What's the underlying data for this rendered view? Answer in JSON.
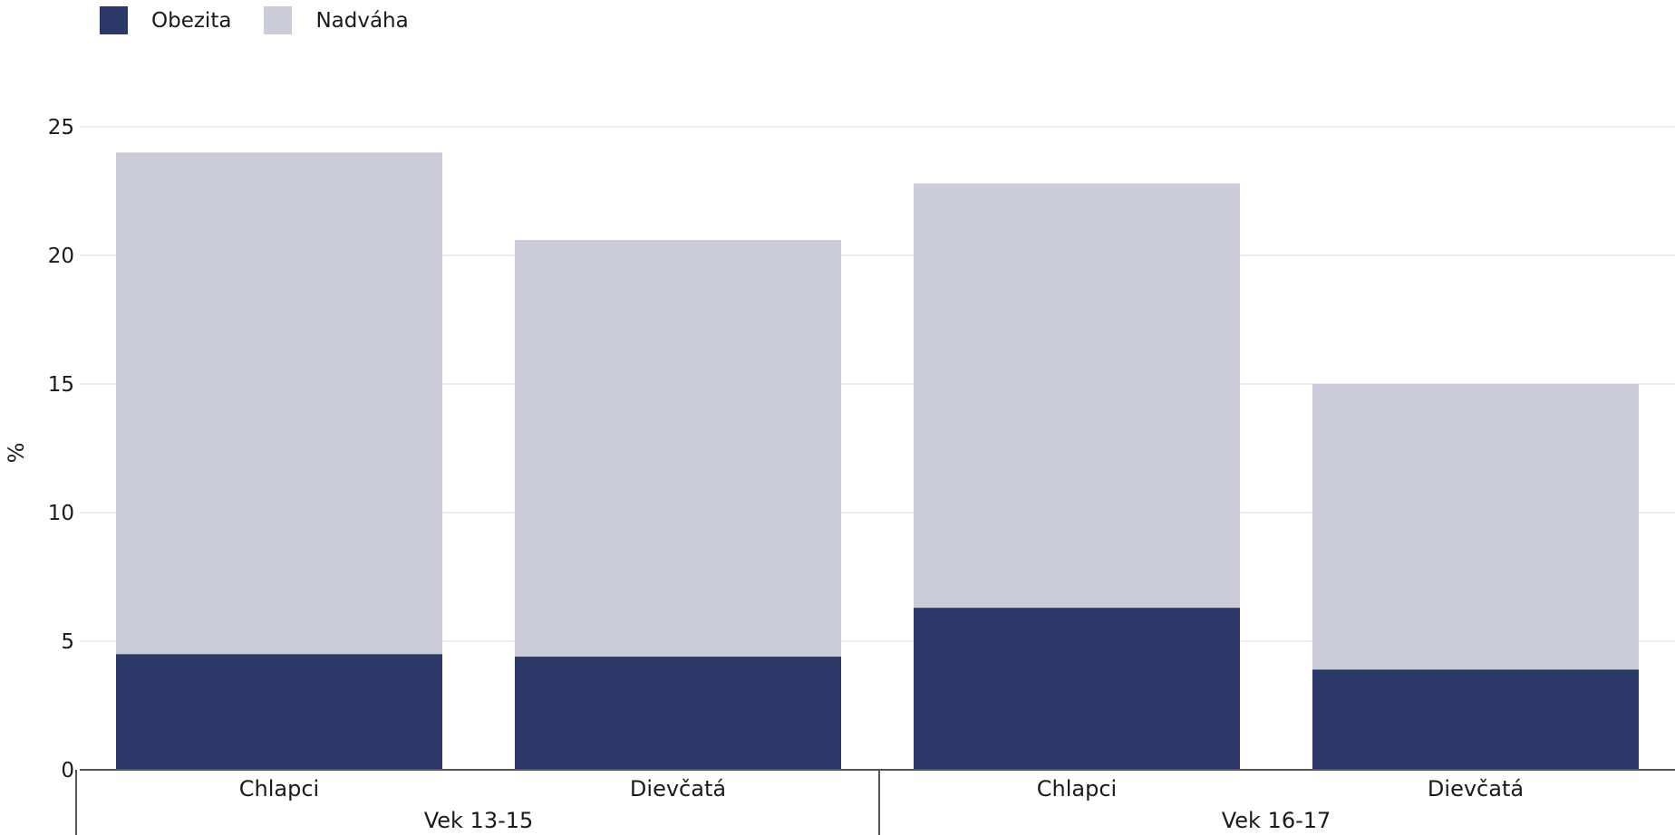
{
  "legend": [
    {
      "label": "Obezita",
      "color": "#2b3766"
    },
    {
      "label": "Nadváha",
      "color": "#cacdd9"
    }
  ],
  "chart_data": {
    "type": "bar",
    "stacked": true,
    "ylabel": "%",
    "ylim": [
      0,
      25
    ],
    "yticks": [
      0,
      5,
      10,
      15,
      20,
      25
    ],
    "grid": true,
    "legend_position": "top-left",
    "categories": [
      "Chlapci",
      "Dievčatá",
      "Chlapci",
      "Dievčatá"
    ],
    "groups": [
      {
        "label": "Vek 13-15",
        "categories": [
          "Chlapci",
          "Dievčatá"
        ]
      },
      {
        "label": "Vek 16-17",
        "categories": [
          "Chlapci",
          "Dievčatá"
        ]
      }
    ],
    "series": [
      {
        "name": "Obezita",
        "color": "#2b3766",
        "values": [
          4.5,
          4.4,
          6.3,
          3.9
        ]
      },
      {
        "name": "Nadváha",
        "color": "#cacdd9",
        "values": [
          19.5,
          16.2,
          16.5,
          11.1
        ]
      }
    ]
  }
}
